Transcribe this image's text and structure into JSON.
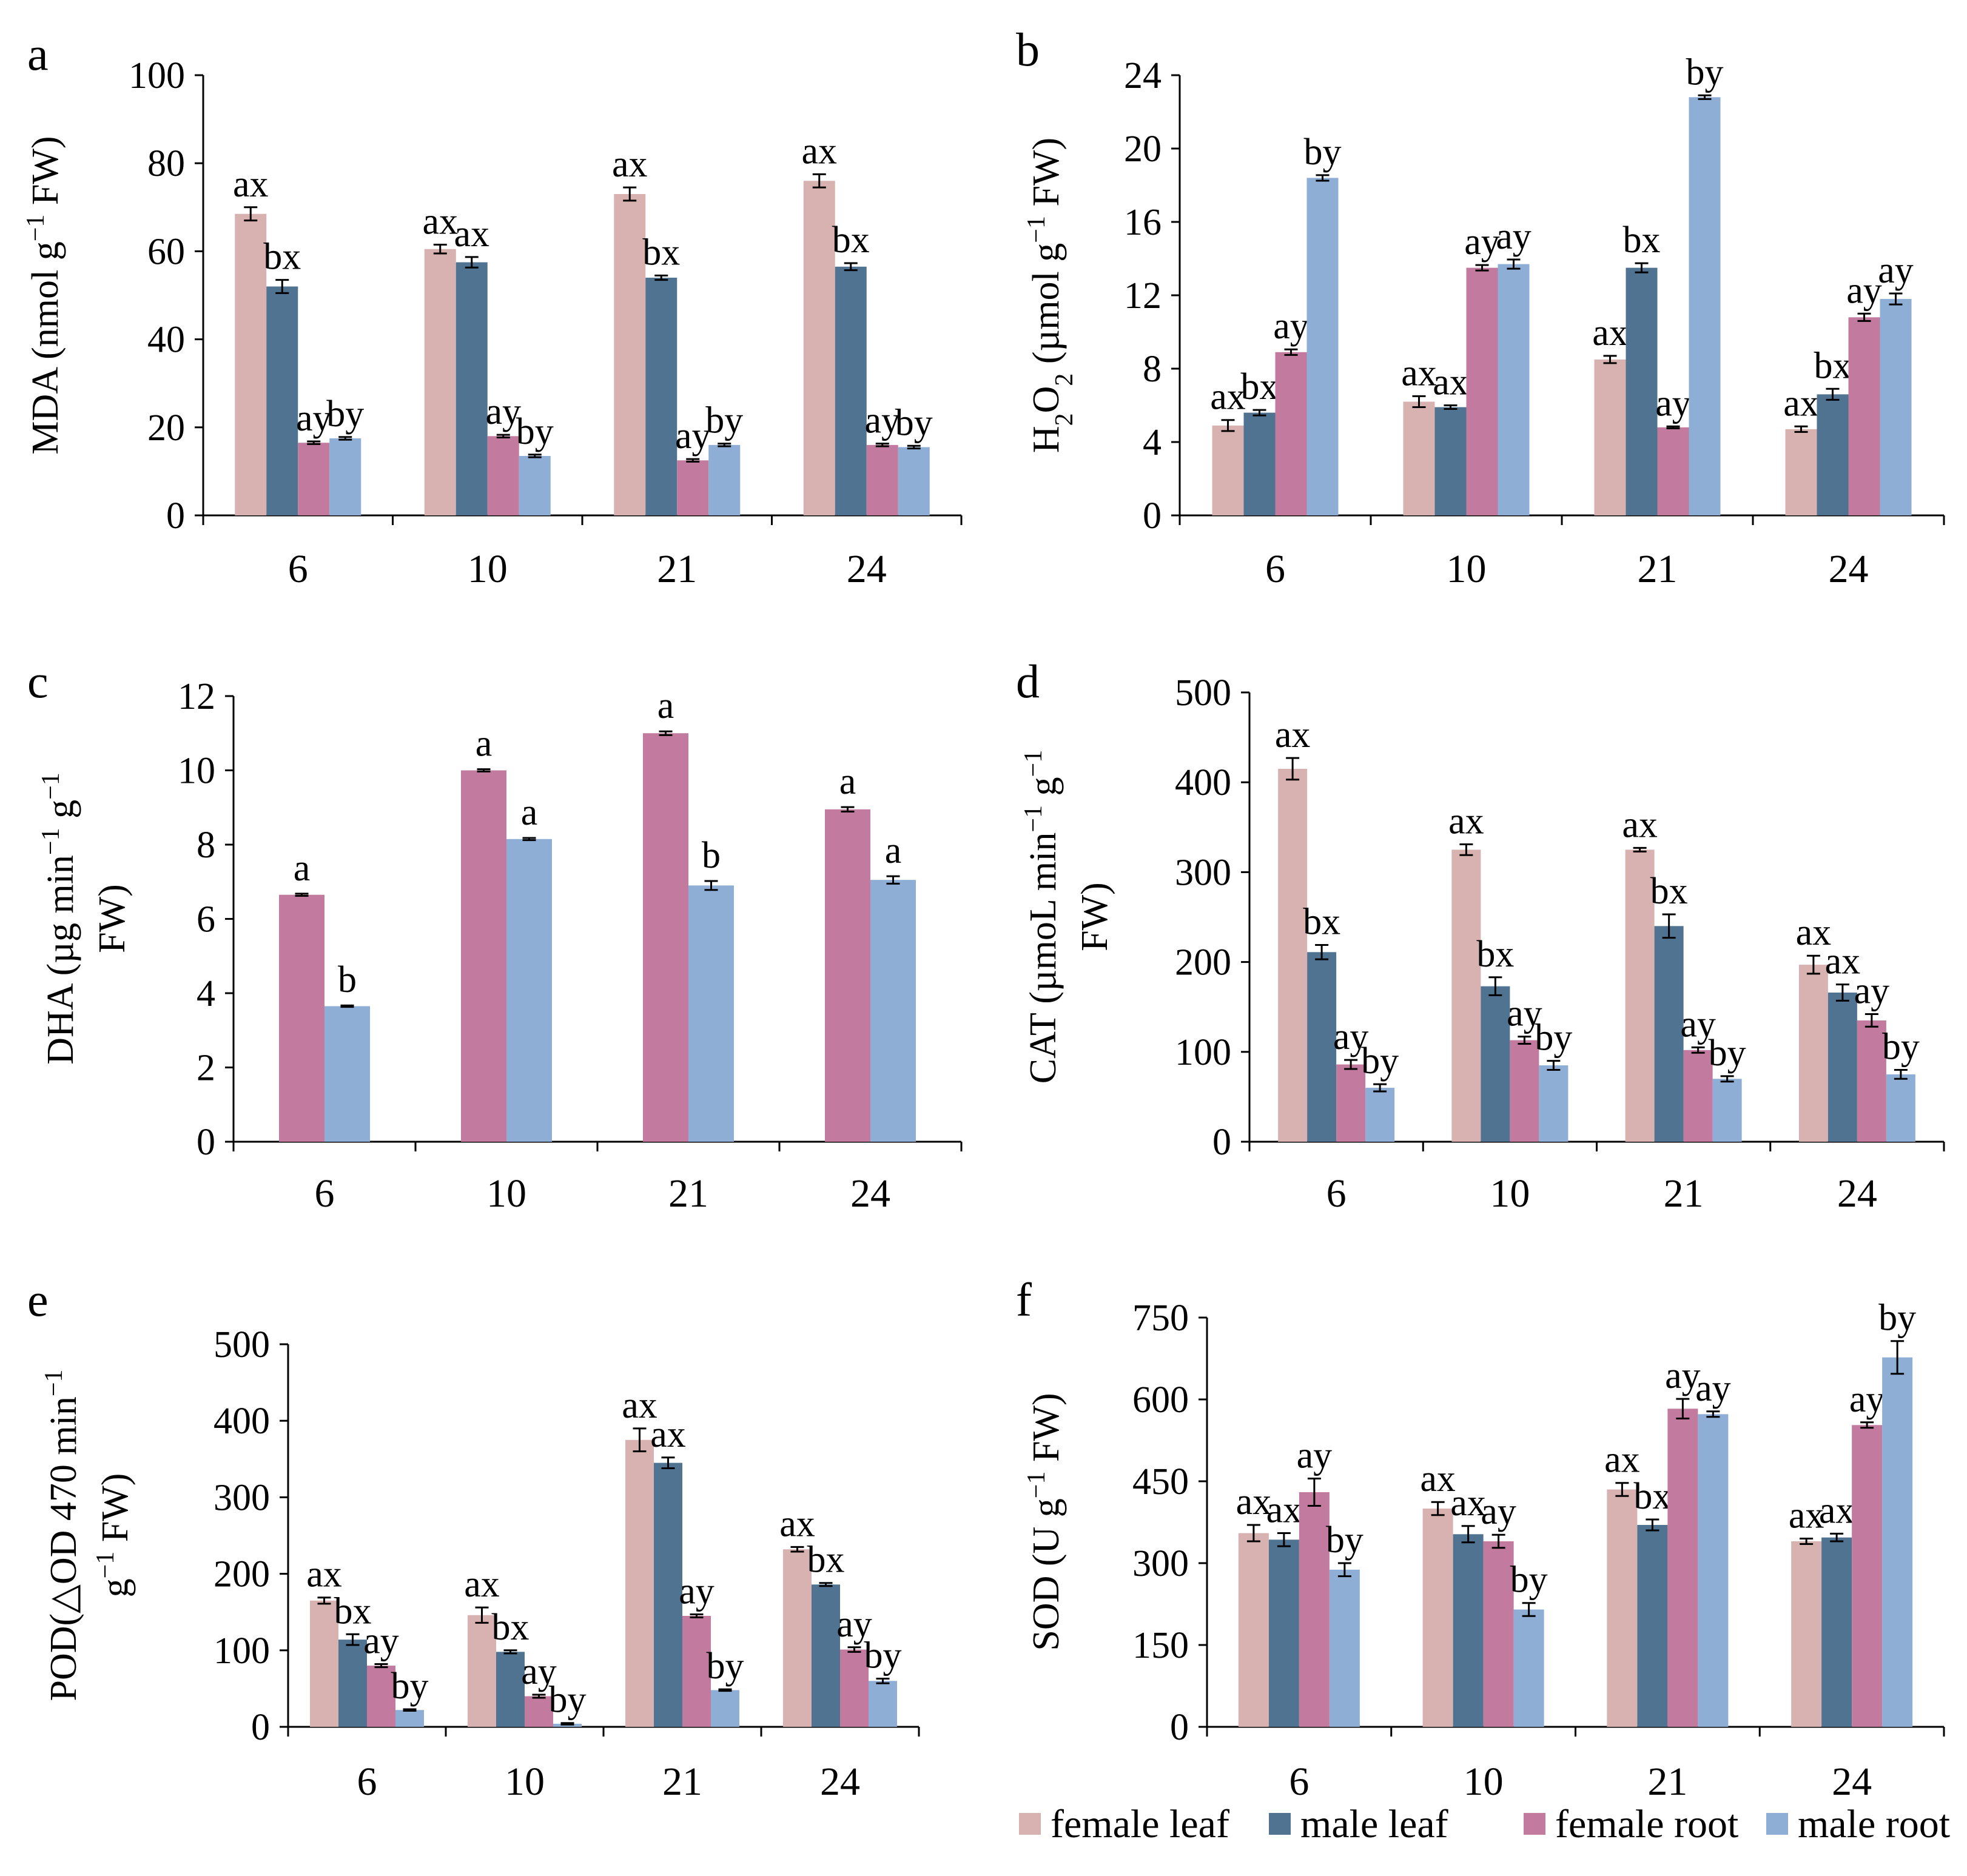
{
  "figure": {
    "series_names": [
      "female leaf",
      "male leaf",
      "female root",
      "male root"
    ],
    "colors": {
      "female leaf": "#d8b2b1",
      "male leaf": "#4f7390",
      "female root": "#c27b9f",
      "male root": "#8eaed6"
    }
  },
  "legend": [
    {
      "name": "female leaf",
      "color": "#d8b2b1"
    },
    {
      "name": "male leaf",
      "color": "#4f7390"
    },
    {
      "name": "female root",
      "color": "#c27b9f"
    },
    {
      "name": "male root",
      "color": "#8eaed6"
    }
  ],
  "chart_data": [
    {
      "panel": "a",
      "type": "bar",
      "ylabel_lines": [
        [
          "MDA  (nmol g",
          {
            "sup": "−1"
          },
          " FW)"
        ]
      ],
      "ylim": [
        0,
        100
      ],
      "yticks": [
        0,
        20,
        40,
        60,
        80,
        100
      ],
      "categories": [
        "6",
        "10",
        "21",
        "24"
      ],
      "series": [
        {
          "name": "female leaf",
          "values": [
            68.5,
            60.5,
            73,
            76
          ],
          "errors": [
            1.5,
            1.0,
            1.5,
            1.5
          ],
          "labels": [
            "ax",
            "ax",
            "ax",
            "ax"
          ]
        },
        {
          "name": "male leaf",
          "values": [
            52,
            57.5,
            54,
            56.5
          ],
          "errors": [
            1.5,
            1.2,
            0.5,
            0.8
          ],
          "labels": [
            "bx",
            "ax",
            "bx",
            "bx"
          ]
        },
        {
          "name": "female root",
          "values": [
            16.5,
            18,
            12.5,
            16
          ],
          "errors": [
            0.3,
            0.3,
            0.3,
            0.3
          ],
          "labels": [
            "ay",
            "ay",
            "ay",
            "ay"
          ]
        },
        {
          "name": "male root",
          "values": [
            17.5,
            13.5,
            16,
            15.5
          ],
          "errors": [
            0.3,
            0.3,
            0.3,
            0.3
          ],
          "labels": [
            "by",
            "by",
            "by",
            "by"
          ]
        }
      ]
    },
    {
      "panel": "b",
      "type": "bar",
      "ylabel_lines": [
        [
          "H",
          {
            "sub": "2"
          },
          "O",
          {
            "sub": "2"
          },
          "  (µmol g",
          {
            "sup": "−1"
          },
          " FW)"
        ]
      ],
      "ylim": [
        0,
        24
      ],
      "yticks": [
        0,
        4,
        8,
        12,
        16,
        20,
        24
      ],
      "categories": [
        "6",
        "10",
        "21",
        "24"
      ],
      "series": [
        {
          "name": "female leaf",
          "values": [
            4.9,
            6.2,
            8.5,
            4.7
          ],
          "errors": [
            0.3,
            0.3,
            0.2,
            0.15
          ],
          "labels": [
            "ax",
            "ax",
            "ax",
            "ax"
          ]
        },
        {
          "name": "male leaf",
          "values": [
            5.6,
            5.9,
            13.5,
            6.6
          ],
          "errors": [
            0.15,
            0.1,
            0.25,
            0.3
          ],
          "labels": [
            "bx",
            "ax",
            "bx",
            "bx"
          ]
        },
        {
          "name": "female root",
          "values": [
            8.9,
            13.5,
            4.8,
            10.8
          ],
          "errors": [
            0.15,
            0.15,
            0.05,
            0.2
          ],
          "labels": [
            "ay",
            "ay",
            "ay",
            "ay"
          ]
        },
        {
          "name": "male root",
          "values": [
            18.4,
            13.7,
            22.8,
            11.8
          ],
          "errors": [
            0.15,
            0.25,
            0.1,
            0.3
          ],
          "labels": [
            "by",
            "ay",
            "by",
            "ay"
          ]
        }
      ]
    },
    {
      "panel": "c",
      "type": "bar",
      "ylabel_lines": [
        [
          "DHA   (µg min",
          {
            "sup": "−1"
          },
          " g",
          {
            "sup": "−1"
          }
        ],
        [
          "FW)"
        ]
      ],
      "ylim": [
        0,
        12
      ],
      "yticks": [
        0,
        2,
        4,
        6,
        8,
        10,
        12
      ],
      "categories": [
        "6",
        "10",
        "21",
        "24"
      ],
      "series": [
        {
          "name": "female root",
          "values": [
            6.65,
            10,
            11,
            8.95
          ],
          "errors": [
            0.03,
            0.03,
            0.05,
            0.06
          ],
          "labels": [
            "a",
            "a",
            "a",
            "a"
          ]
        },
        {
          "name": "male root",
          "values": [
            3.65,
            8.15,
            6.9,
            7.05
          ],
          "errors": [
            0.02,
            0.03,
            0.12,
            0.1
          ],
          "labels": [
            "b",
            "a",
            "b",
            "a"
          ]
        }
      ]
    },
    {
      "panel": "d",
      "type": "bar",
      "ylabel_lines": [
        [
          "CAT (µmoL min",
          {
            "sup": "−1"
          },
          " g",
          {
            "sup": "−1"
          }
        ],
        [
          "FW)"
        ]
      ],
      "ylim": [
        0,
        500
      ],
      "yticks": [
        0,
        100,
        200,
        300,
        400,
        500
      ],
      "categories": [
        "6",
        "10",
        "21",
        "24"
      ],
      "series": [
        {
          "name": "female leaf",
          "values": [
            415,
            325,
            325,
            197
          ],
          "errors": [
            12,
            6,
            2,
            10
          ],
          "labels": [
            "ax",
            "ax",
            "ax",
            "ax"
          ]
        },
        {
          "name": "male leaf",
          "values": [
            211,
            173,
            240,
            166
          ],
          "errors": [
            8,
            10,
            13,
            9
          ],
          "labels": [
            "bx",
            "bx",
            "bx",
            "ax"
          ]
        },
        {
          "name": "female root",
          "values": [
            86,
            113,
            102,
            135
          ],
          "errors": [
            5,
            4,
            3,
            7
          ],
          "labels": [
            "ay",
            "ay",
            "ay",
            "ay"
          ]
        },
        {
          "name": "male root",
          "values": [
            60,
            85,
            70,
            75
          ],
          "errors": [
            4,
            5,
            3,
            5
          ],
          "labels": [
            "by",
            "by",
            "by",
            "by"
          ]
        }
      ]
    },
    {
      "panel": "e",
      "type": "bar",
      "ylabel_lines": [
        [
          "POD(△OD 470  min",
          {
            "sup": "−1"
          }
        ],
        [
          "g",
          {
            "sup": "−1"
          },
          " FW)"
        ]
      ],
      "ylim": [
        0,
        500
      ],
      "yticks": [
        0,
        100,
        200,
        300,
        400,
        500
      ],
      "categories": [
        "6",
        "10",
        "21",
        "24"
      ],
      "series": [
        {
          "name": "female leaf",
          "values": [
            165,
            146,
            375,
            232
          ],
          "errors": [
            4,
            10,
            15,
            3
          ],
          "labels": [
            "ax",
            "ax",
            "ax",
            "ax"
          ]
        },
        {
          "name": "male leaf",
          "values": [
            114,
            98,
            345,
            186
          ],
          "errors": [
            7,
            2,
            7,
            2
          ],
          "labels": [
            "bx",
            "bx",
            "ax",
            "bx"
          ]
        },
        {
          "name": "female root",
          "values": [
            80,
            40,
            145,
            101
          ],
          "errors": [
            2,
            2,
            2,
            3
          ],
          "labels": [
            "ay",
            "ay",
            "ay",
            "ay"
          ]
        },
        {
          "name": "male root",
          "values": [
            22,
            4,
            48,
            60
          ],
          "errors": [
            1,
            1,
            1,
            3
          ],
          "labels": [
            "by",
            "by",
            "by",
            "by"
          ]
        }
      ]
    },
    {
      "panel": "f",
      "type": "bar",
      "ylabel_lines": [
        [
          "SOD (U g",
          {
            "sup": "−1"
          },
          " FW)"
        ]
      ],
      "ylim": [
        0,
        750
      ],
      "yticks": [
        0,
        150,
        300,
        450,
        600,
        750
      ],
      "categories": [
        "6",
        "10",
        "21",
        "24"
      ],
      "series": [
        {
          "name": "female leaf",
          "values": [
            355,
            400,
            435,
            340
          ],
          "errors": [
            15,
            12,
            12,
            5
          ],
          "labels": [
            "ax",
            "ax",
            "ax",
            "ax"
          ]
        },
        {
          "name": "male leaf",
          "values": [
            343,
            353,
            370,
            347
          ],
          "errors": [
            12,
            15,
            10,
            7
          ],
          "labels": [
            "ax",
            "ax",
            "bx",
            "ax"
          ]
        },
        {
          "name": "female root",
          "values": [
            430,
            340,
            583,
            553
          ],
          "errors": [
            25,
            12,
            18,
            5
          ],
          "labels": [
            "ay",
            "ay",
            "ay",
            "ay"
          ]
        },
        {
          "name": "male root",
          "values": [
            288,
            215,
            573,
            677
          ],
          "errors": [
            12,
            12,
            5,
            30
          ],
          "labels": [
            "by",
            "by",
            "ay",
            "by"
          ]
        }
      ]
    }
  ]
}
